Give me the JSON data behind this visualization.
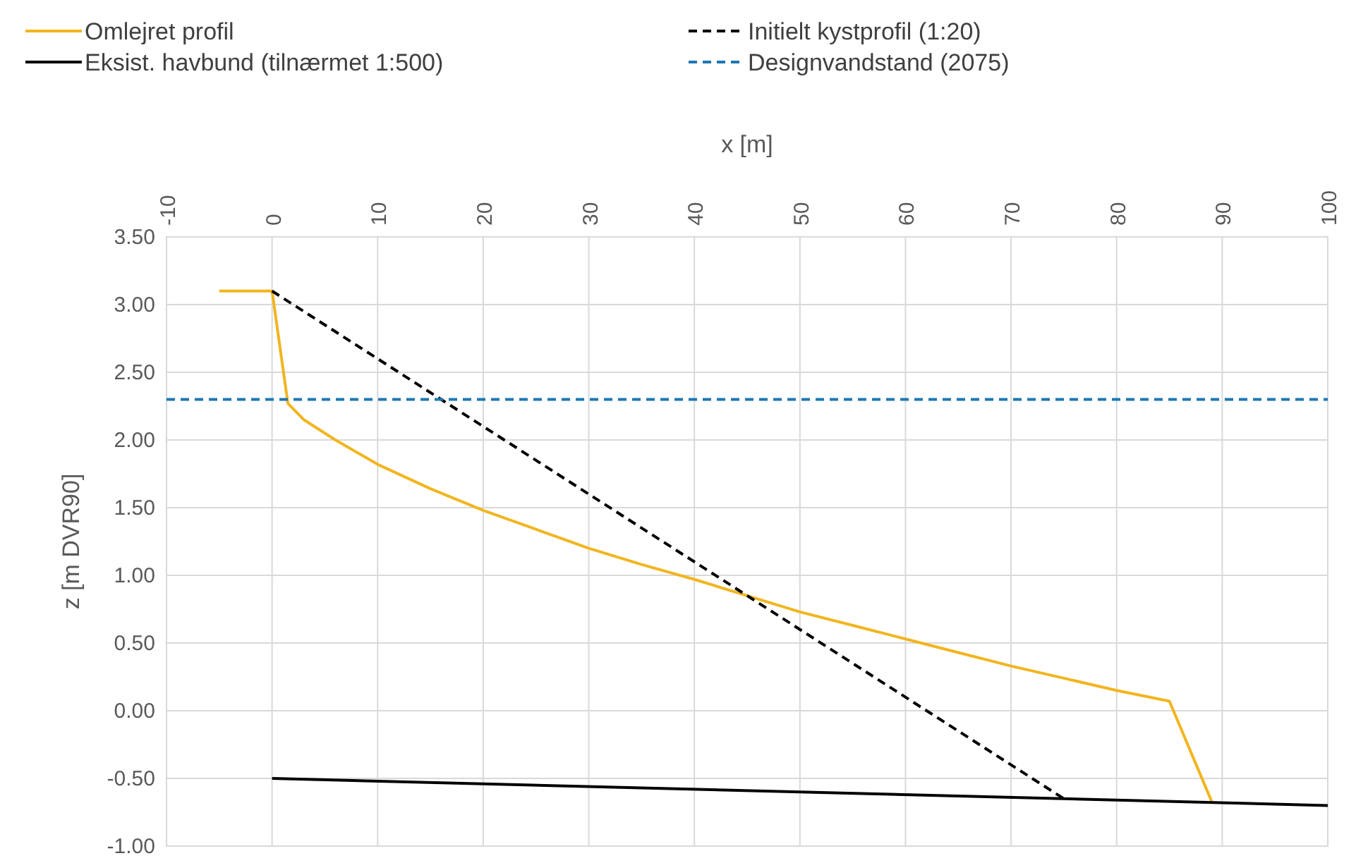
{
  "chart_data": {
    "type": "line",
    "xlabel": "x [m]",
    "ylabel": "z [m DVR90]",
    "xlim": [
      -10,
      100
    ],
    "xticks": [
      -10,
      0,
      10,
      20,
      30,
      40,
      50,
      60,
      70,
      80,
      90,
      100
    ],
    "ylim": [
      -1,
      3.5
    ],
    "yticks": [
      {
        "value": -1,
        "label": "-1.00"
      },
      {
        "value": -0.5,
        "label": "-0.50"
      },
      {
        "value": 0,
        "label": "0.00"
      },
      {
        "value": 0.5,
        "label": "0.50"
      },
      {
        "value": 1,
        "label": "1.00"
      },
      {
        "value": 1.5,
        "label": "1.50"
      },
      {
        "value": 2,
        "label": "2.00"
      },
      {
        "value": 2.5,
        "label": "2.50"
      },
      {
        "value": 3,
        "label": "3.00"
      },
      {
        "value": 3.5,
        "label": "3.50"
      }
    ],
    "grid": true,
    "legend": "top",
    "series": [
      {
        "name": "Omlejret profil",
        "color": "#f2b51f",
        "line_style": "solid",
        "x": [
          -5,
          0,
          1.5,
          3,
          6,
          10,
          15,
          20,
          25,
          30,
          35,
          40,
          45,
          50,
          55,
          60,
          65,
          70,
          75,
          80,
          85,
          89
        ],
        "values": [
          3.1,
          3.1,
          2.27,
          2.15,
          2.0,
          1.82,
          1.64,
          1.48,
          1.34,
          1.2,
          1.08,
          0.97,
          0.85,
          0.73,
          0.63,
          0.53,
          0.43,
          0.33,
          0.24,
          0.15,
          0.07,
          -0.67
        ]
      },
      {
        "name": "Initielt kystprofil (1:20)",
        "color": "#000000",
        "line_style": "dashed",
        "x": [
          0,
          75
        ],
        "values": [
          3.1,
          -0.65
        ]
      },
      {
        "name": "Eksist. havbund (tilnærmet 1:500)",
        "color": "#000000",
        "line_style": "solid",
        "x": [
          0,
          100
        ],
        "values": [
          -0.5,
          -0.7
        ]
      },
      {
        "name": "Designvandstand (2075)",
        "color": "#1f77b4",
        "line_style": "dashed",
        "x": [
          -10,
          100
        ],
        "values": [
          2.3,
          2.3
        ]
      }
    ]
  }
}
